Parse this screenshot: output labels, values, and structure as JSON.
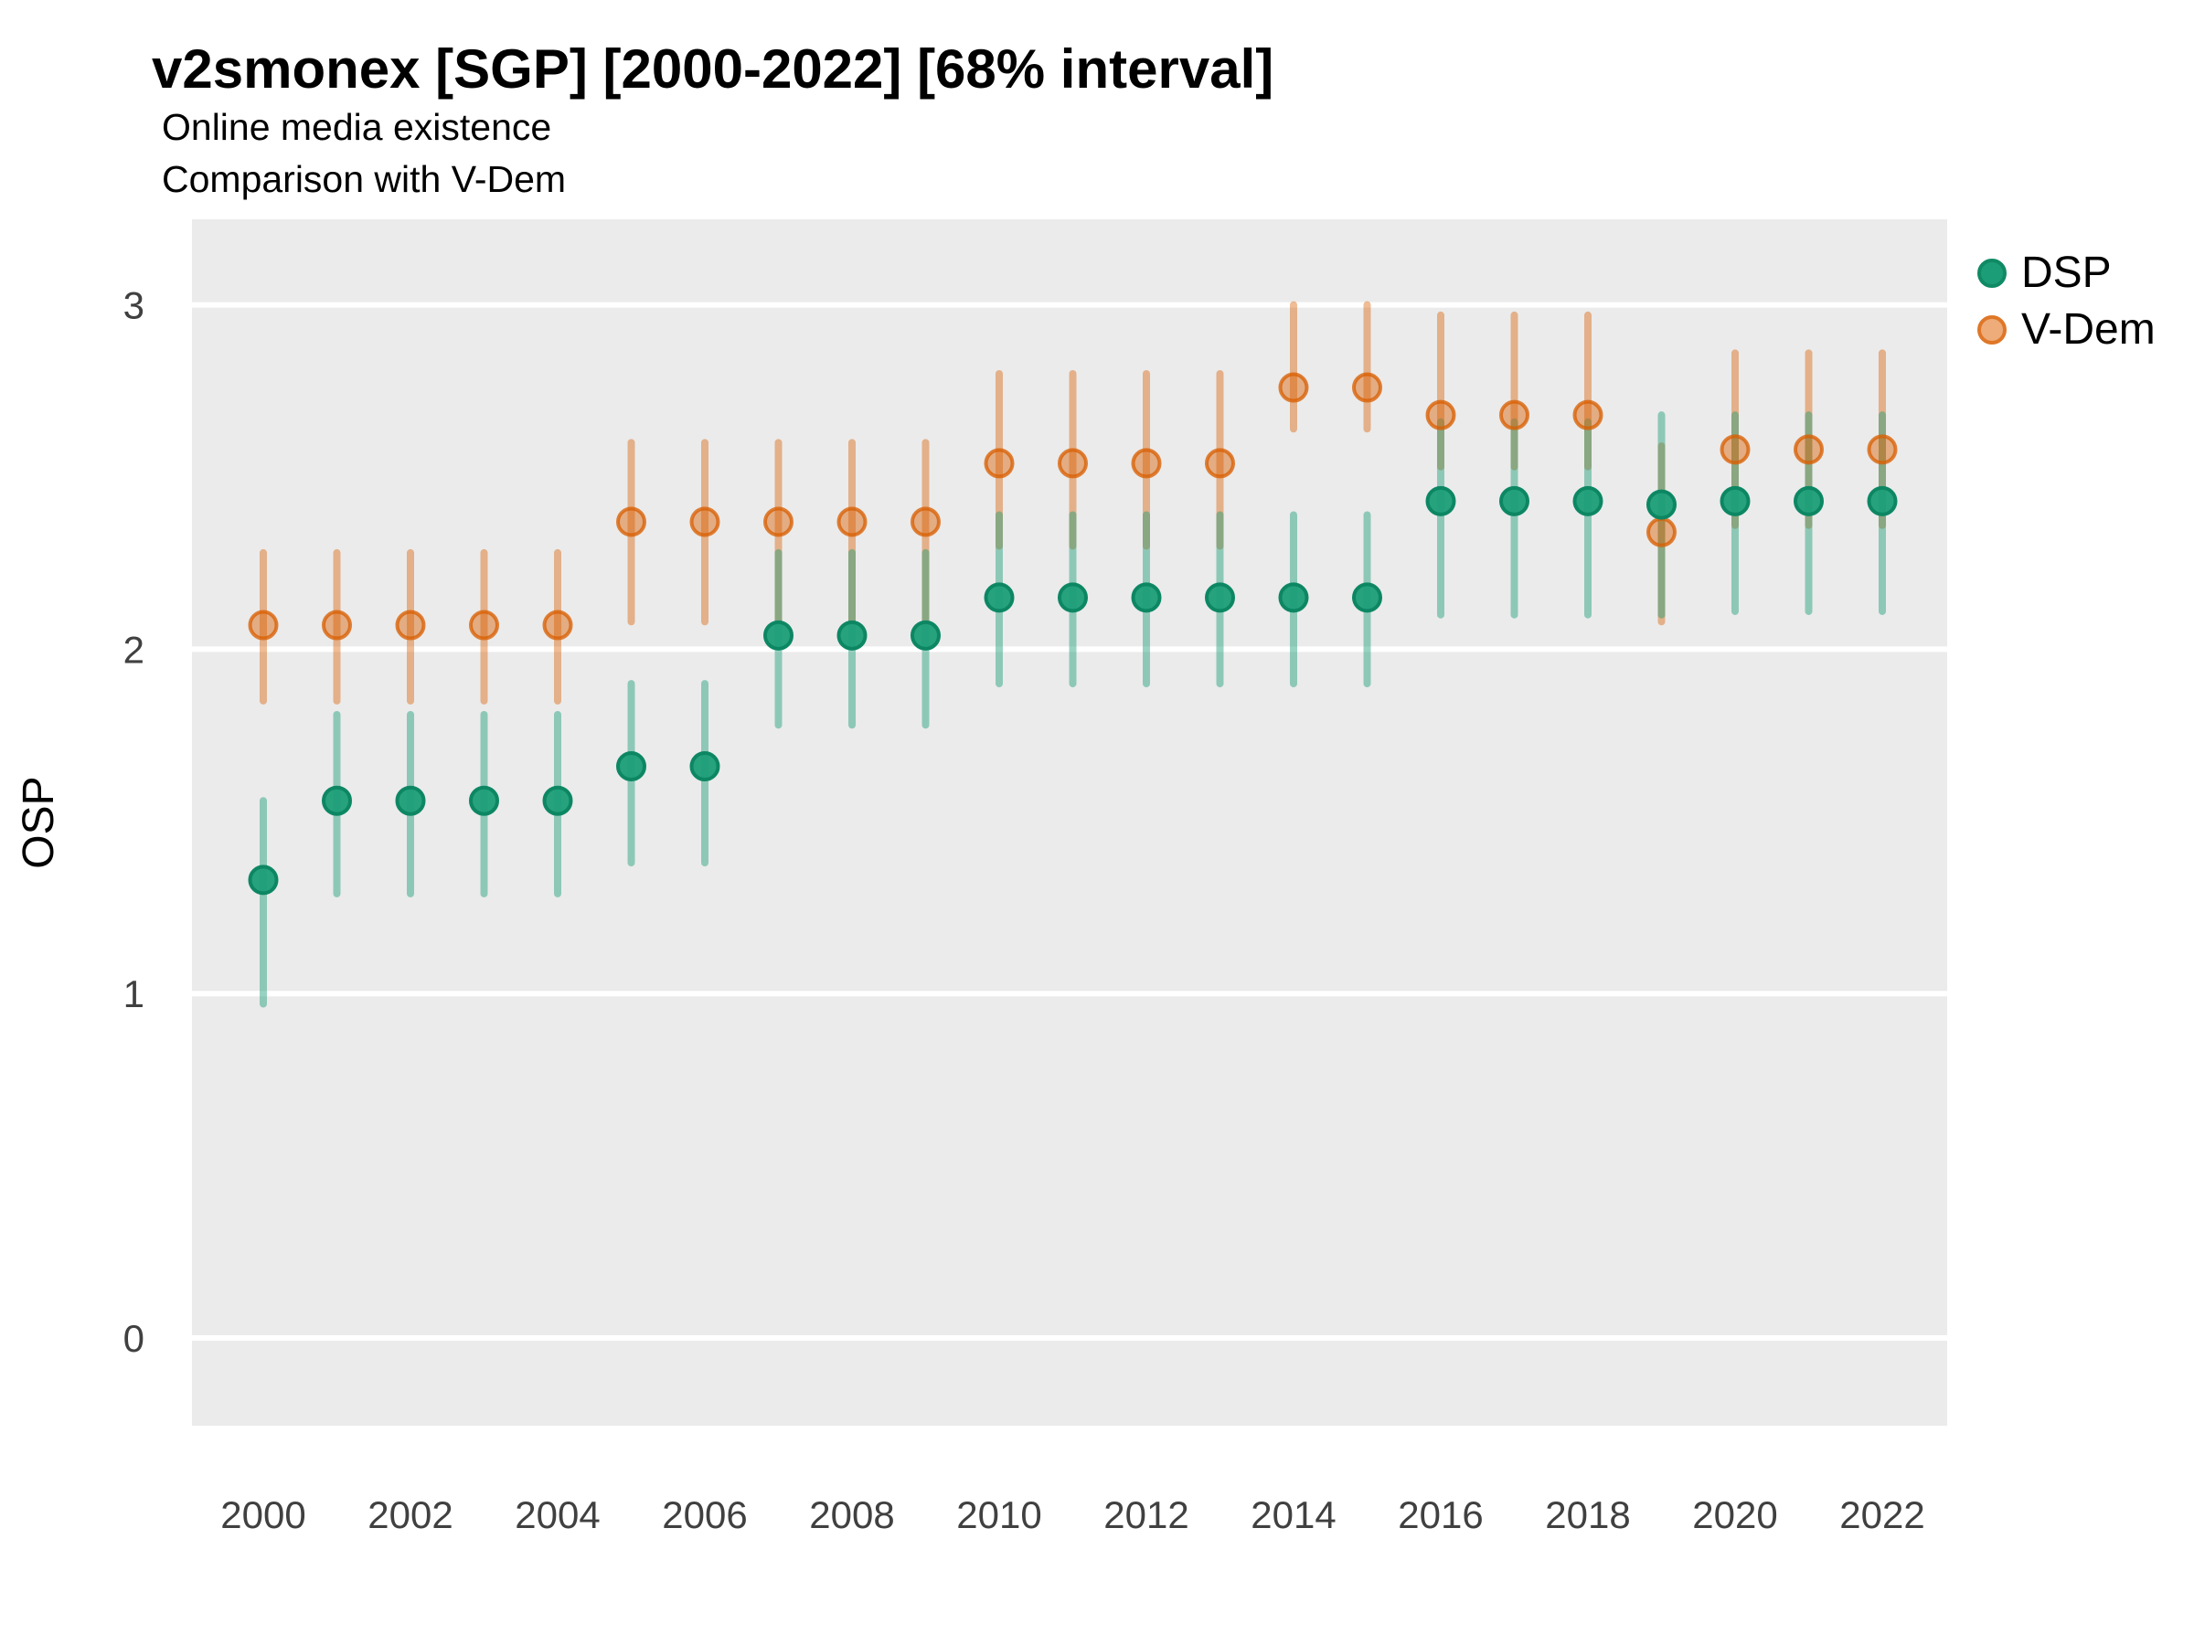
{
  "header": {
    "title": "v2smonex [SGP] [2000-2022] [68% interval]",
    "subtitle1": "Online media existence",
    "subtitle2": "Comparison with V-Dem"
  },
  "y_axis": {
    "title": "OSP",
    "ticks": [
      "3",
      "2",
      "1",
      "0"
    ],
    "tick_values": [
      3,
      2,
      1,
      0
    ],
    "range": [
      -0.25,
      3.25
    ]
  },
  "x_axis": {
    "ticks": [
      "2000",
      "2002",
      "2004",
      "2006",
      "2008",
      "2010",
      "2012",
      "2014",
      "2016",
      "2018",
      "2020",
      "2022"
    ],
    "tick_values": [
      2000,
      2002,
      2004,
      2006,
      2008,
      2010,
      2012,
      2014,
      2016,
      2018,
      2020,
      2022
    ]
  },
  "legend": {
    "items": [
      {
        "label": "DSP",
        "swatch_fill": "#1B9E77",
        "swatch_border": "#108A64"
      },
      {
        "label": "V-Dem",
        "swatch_fill": "#EDAC79",
        "swatch_border": "#DF7728"
      }
    ]
  },
  "colors": {
    "panel_background": "#EBEBEB",
    "gridline": "#FFFFFF",
    "dsp": "#1B9E77",
    "vdem": "#D95F02"
  },
  "chart_data": {
    "type": "pointrange",
    "title": "v2smonex [SGP] [2000-2022] [68% interval]",
    "subtitle": "Online media existence — Comparison with V-Dem",
    "interval": "68%",
    "ylabel": "OSP",
    "xlabel": "",
    "ylim": [
      -0.25,
      3.25
    ],
    "grid": true,
    "legend_position": "right",
    "years": [
      2000,
      2001,
      2002,
      2003,
      2004,
      2005,
      2006,
      2007,
      2008,
      2009,
      2010,
      2011,
      2012,
      2013,
      2014,
      2015,
      2016,
      2017,
      2018,
      2019,
      2020,
      2021,
      2022
    ],
    "series": [
      {
        "name": "DSP",
        "color": "#1B9E77",
        "bar_color": "rgba(27,158,119,0.45)",
        "point_fill": "rgba(27,158,119,0.95)",
        "point_stroke": "rgba(13,135,99,1)",
        "estimates": [
          1.33,
          1.56,
          1.56,
          1.56,
          1.56,
          1.66,
          1.66,
          2.04,
          2.04,
          2.04,
          2.15,
          2.15,
          2.15,
          2.15,
          2.15,
          2.15,
          2.43,
          2.43,
          2.43,
          2.42,
          2.43,
          2.43,
          2.43
        ],
        "lower": [
          0.97,
          1.29,
          1.29,
          1.29,
          1.29,
          1.38,
          1.38,
          1.78,
          1.78,
          1.78,
          1.9,
          1.9,
          1.9,
          1.9,
          1.9,
          1.9,
          2.1,
          2.1,
          2.1,
          2.1,
          2.11,
          2.11,
          2.11
        ],
        "upper": [
          1.56,
          1.81,
          1.81,
          1.81,
          1.81,
          1.9,
          1.9,
          2.28,
          2.28,
          2.28,
          2.39,
          2.39,
          2.39,
          2.39,
          2.39,
          2.39,
          2.66,
          2.66,
          2.66,
          2.68,
          2.68,
          2.68,
          2.68
        ]
      },
      {
        "name": "V-Dem",
        "color": "#D95F02",
        "bar_color": "rgba(217,95,2,0.42)",
        "point_fill": "rgba(217,95,2,0.45)",
        "point_stroke": "rgba(217,95,2,0.78)",
        "estimates": [
          2.07,
          2.07,
          2.07,
          2.07,
          2.07,
          2.37,
          2.37,
          2.37,
          2.37,
          2.37,
          2.54,
          2.54,
          2.54,
          2.54,
          2.76,
          2.76,
          2.68,
          2.68,
          2.68,
          2.34,
          2.58,
          2.58,
          2.58
        ],
        "lower": [
          1.85,
          1.85,
          1.85,
          1.85,
          1.85,
          2.08,
          2.08,
          2.08,
          2.08,
          2.08,
          2.3,
          2.3,
          2.3,
          2.3,
          2.64,
          2.64,
          2.53,
          2.53,
          2.53,
          2.08,
          2.36,
          2.36,
          2.36
        ],
        "upper": [
          2.28,
          2.28,
          2.28,
          2.28,
          2.28,
          2.6,
          2.6,
          2.6,
          2.6,
          2.6,
          2.8,
          2.8,
          2.8,
          2.8,
          3.0,
          3.0,
          2.97,
          2.97,
          2.97,
          2.59,
          2.86,
          2.86,
          2.86
        ]
      }
    ]
  }
}
